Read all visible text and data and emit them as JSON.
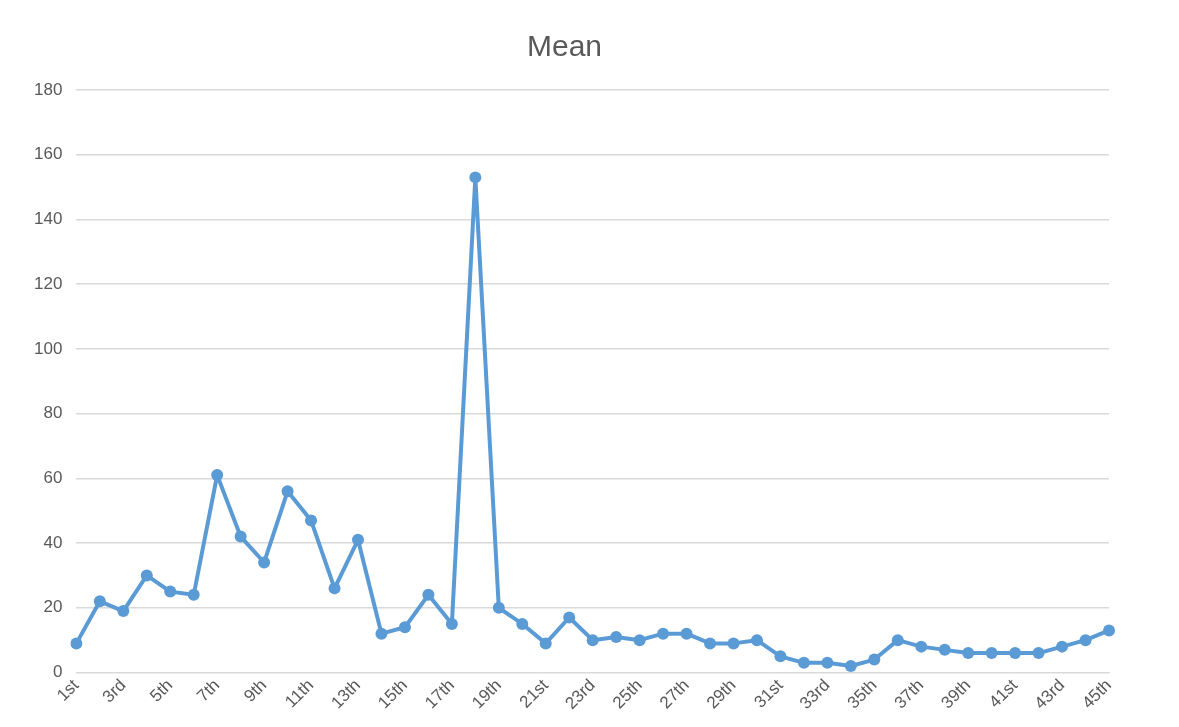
{
  "chart_data": {
    "type": "line",
    "title": "Mean",
    "categories": [
      "1st",
      null,
      "3rd",
      null,
      "5th",
      null,
      "7th",
      null,
      "9th",
      null,
      "11th",
      null,
      "13th",
      null,
      "15th",
      null,
      "17th",
      null,
      "19th",
      null,
      "21st",
      null,
      "23rd",
      null,
      "25th",
      null,
      "27th",
      null,
      "29th",
      null,
      "31st",
      null,
      "33rd",
      null,
      "35th",
      null,
      "37th",
      null,
      "39th",
      null,
      "41st",
      null,
      "43rd",
      null,
      "45th"
    ],
    "series": [
      {
        "color": "#5b9bd5",
        "values": [
          9,
          22,
          19,
          30,
          25,
          24,
          61,
          42,
          34,
          56,
          47,
          26,
          41,
          12,
          14,
          24,
          15,
          153,
          20,
          15,
          9,
          17,
          10,
          11,
          10,
          12,
          12,
          9,
          9,
          10,
          5,
          3,
          3,
          2,
          4,
          10,
          8,
          7,
          6,
          6,
          6,
          6,
          8,
          10,
          13
        ]
      }
    ],
    "ylim": [
      0,
      180
    ],
    "yticks": [
      0,
      20,
      40,
      60,
      80,
      100,
      120,
      140,
      160,
      180
    ],
    "grid": "y",
    "legend": false,
    "marker": "circle",
    "line_style": "solid"
  }
}
